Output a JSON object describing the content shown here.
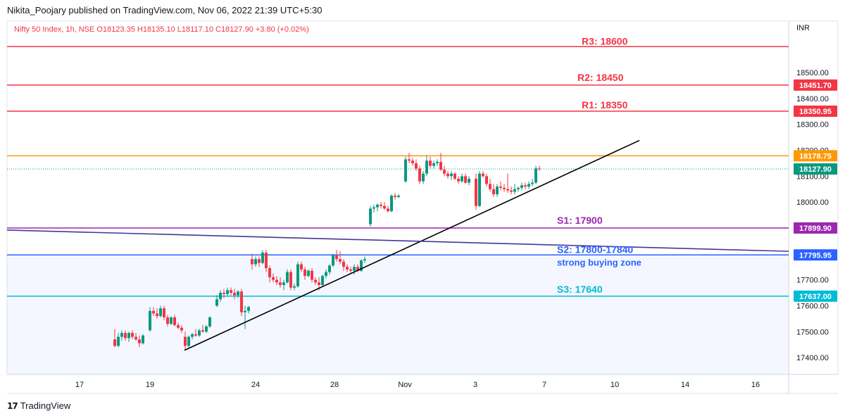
{
  "header": {
    "publish_text": "Nikita_Poojary published on TradingView.com, Nov 06, 2022 21:39 UTC+5:30"
  },
  "footer": {
    "logo_text": "TradingView",
    "logo_mark": "17"
  },
  "chart_data": {
    "type": "candlestick",
    "symbol_line": "Nifty 50 Index, 1h, NSE  O18123.35  H18135.10  L18117.10  C18127.90  +3.80 (+0.02%)",
    "currency": "INR",
    "ylim": [
      17335,
      18685
    ],
    "y_ticks": [
      17400,
      17500,
      17600,
      17700,
      17800,
      17900,
      18000,
      18100,
      18200,
      18300,
      18400,
      18500
    ],
    "y_tick_labels": [
      "17400.00",
      "17500.00",
      "17600.00",
      "17700.00",
      "17800.00",
      "17900.00",
      "18000.00",
      "18100.00",
      "18200.00",
      "18300.00",
      "18400.00",
      "18500.00"
    ],
    "x_ticks": [
      {
        "label": "17",
        "pos": 113
      },
      {
        "label": "19",
        "pos": 213
      },
      {
        "label": "24",
        "pos": 363
      },
      {
        "label": "28",
        "pos": 475
      },
      {
        "label": "Nov",
        "pos": 575
      },
      {
        "label": "3",
        "pos": 675
      },
      {
        "label": "7",
        "pos": 773
      },
      {
        "label": "10",
        "pos": 873
      },
      {
        "label": "14",
        "pos": 973
      },
      {
        "label": "16",
        "pos": 1073
      }
    ],
    "levels": [
      {
        "name": "R3",
        "label": "R3: 18600",
        "value": 18600,
        "color": "#f23645",
        "badge": ""
      },
      {
        "name": "R2",
        "label": "R2: 18450",
        "value": 18451.7,
        "color": "#f23645",
        "badge": "18451.70"
      },
      {
        "name": "R1",
        "label": "R1: 18350",
        "value": 18350.95,
        "color": "#f23645",
        "badge": "18350.95"
      },
      {
        "name": "orange",
        "label": "",
        "value": 18178.75,
        "color": "#ff9800",
        "badge": "18178.75"
      },
      {
        "name": "S1",
        "label": "S1: 17900",
        "value": 17899.9,
        "color": "#9c27b0",
        "badge": "17899.90"
      },
      {
        "name": "S2",
        "label": "S2: 17800-17840",
        "value": 17795.95,
        "color": "#2962ff",
        "badge": "17795.95"
      },
      {
        "name": "S3",
        "label": "S3: 17640",
        "value": 17637.0,
        "color": "#00bcd4",
        "badge": "17637.00"
      }
    ],
    "last_price": {
      "value": 18127.9,
      "badge": "18127.90",
      "color": "#089981"
    },
    "zone_note": "strong buying zone",
    "zone_range": [
      17335,
      17796
    ],
    "trendlines": [
      {
        "name": "rising-trendline",
        "from": [
          262,
          17428
        ],
        "to": [
          908,
          18238
        ],
        "color": "#000000"
      },
      {
        "name": "falling-trendline",
        "from": [
          10,
          17892
        ],
        "to": [
          1120,
          17810
        ],
        "color": "#3f3a94"
      }
    ],
    "candles": [
      [
        163,
        17470,
        17510,
        17440,
        17445
      ],
      [
        168,
        17445,
        17495,
        17440,
        17480
      ],
      [
        173,
        17480,
        17505,
        17465,
        17495
      ],
      [
        178,
        17495,
        17505,
        17465,
        17475
      ],
      [
        183,
        17475,
        17500,
        17460,
        17495
      ],
      [
        188,
        17495,
        17505,
        17470,
        17480
      ],
      [
        193,
        17480,
        17495,
        17465,
        17470
      ],
      [
        198,
        17470,
        17485,
        17440,
        17455
      ],
      [
        203,
        17455,
        17490,
        17450,
        17485
      ],
      [
        213,
        17505,
        17595,
        17500,
        17580
      ],
      [
        218,
        17580,
        17595,
        17560,
        17570
      ],
      [
        223,
        17570,
        17590,
        17550,
        17560
      ],
      [
        228,
        17560,
        17600,
        17555,
        17590
      ],
      [
        233,
        17590,
        17600,
        17545,
        17555
      ],
      [
        238,
        17555,
        17565,
        17520,
        17530
      ],
      [
        243,
        17530,
        17560,
        17525,
        17555
      ],
      [
        248,
        17555,
        17565,
        17520,
        17525
      ],
      [
        253,
        17525,
        17535,
        17510,
        17515
      ],
      [
        258,
        17515,
        17525,
        17495,
        17505
      ],
      [
        263,
        17480,
        17500,
        17430,
        17445
      ],
      [
        268,
        17445,
        17485,
        17440,
        17480
      ],
      [
        273,
        17480,
        17495,
        17470,
        17490
      ],
      [
        278,
        17490,
        17510,
        17480,
        17485
      ],
      [
        283,
        17485,
        17510,
        17480,
        17505
      ],
      [
        288,
        17505,
        17525,
        17495,
        17500
      ],
      [
        293,
        17500,
        17525,
        17495,
        17520
      ],
      [
        298,
        17520,
        17560,
        17515,
        17555
      ],
      [
        308,
        17600,
        17640,
        17595,
        17625
      ],
      [
        313,
        17625,
        17660,
        17615,
        17650
      ],
      [
        318,
        17650,
        17665,
        17630,
        17645
      ],
      [
        323,
        17645,
        17670,
        17635,
        17660
      ],
      [
        328,
        17660,
        17670,
        17640,
        17650
      ],
      [
        333,
        17650,
        17665,
        17625,
        17640
      ],
      [
        338,
        17640,
        17660,
        17630,
        17655
      ],
      [
        343,
        17655,
        17665,
        17560,
        17575
      ],
      [
        348,
        17575,
        17600,
        17510,
        17580
      ],
      [
        353,
        17580,
        17600,
        17570,
        17595
      ],
      [
        358,
        17780,
        17800,
        17740,
        17760
      ],
      [
        363,
        17760,
        17790,
        17750,
        17780
      ],
      [
        368,
        17780,
        17790,
        17750,
        17765
      ],
      [
        373,
        17765,
        17815,
        17760,
        17805
      ],
      [
        378,
        17805,
        17815,
        17730,
        17745
      ],
      [
        383,
        17745,
        17755,
        17690,
        17710
      ],
      [
        388,
        17710,
        17725,
        17690,
        17700
      ],
      [
        393,
        17700,
        17715,
        17680,
        17690
      ],
      [
        398,
        17690,
        17710,
        17670,
        17680
      ],
      [
        403,
        17680,
        17700,
        17660,
        17690
      ],
      [
        408,
        17690,
        17740,
        17685,
        17730
      ],
      [
        413,
        17730,
        17740,
        17660,
        17670
      ],
      [
        418,
        17670,
        17685,
        17660,
        17675
      ],
      [
        423,
        17675,
        17770,
        17670,
        17760
      ],
      [
        428,
        17760,
        17770,
        17730,
        17740
      ],
      [
        433,
        17740,
        17750,
        17700,
        17715
      ],
      [
        438,
        17715,
        17740,
        17710,
        17735
      ],
      [
        443,
        17735,
        17745,
        17690,
        17700
      ],
      [
        448,
        17700,
        17710,
        17680,
        17690
      ],
      [
        453,
        17690,
        17710,
        17660,
        17680
      ],
      [
        458,
        17680,
        17720,
        17675,
        17715
      ],
      [
        463,
        17715,
        17740,
        17705,
        17730
      ],
      [
        468,
        17730,
        17760,
        17720,
        17755
      ],
      [
        473,
        17755,
        17800,
        17750,
        17795
      ],
      [
        478,
        17795,
        17815,
        17770,
        17780
      ],
      [
        483,
        17780,
        17810,
        17760,
        17770
      ],
      [
        488,
        17770,
        17780,
        17735,
        17750
      ],
      [
        493,
        17750,
        17760,
        17730,
        17740
      ],
      [
        498,
        17740,
        17750,
        17725,
        17735
      ],
      [
        503,
        17735,
        17760,
        17720,
        17750
      ],
      [
        508,
        17750,
        17760,
        17730,
        17735
      ],
      [
        513,
        17735,
        17780,
        17730,
        17775
      ],
      [
        518,
        17775,
        17790,
        17765,
        17780
      ],
      [
        526,
        17915,
        17985,
        17905,
        17975
      ],
      [
        531,
        17975,
        17990,
        17960,
        17980
      ],
      [
        536,
        17980,
        17995,
        17965,
        17990
      ],
      [
        541,
        17990,
        18000,
        17975,
        17985
      ],
      [
        546,
        17985,
        18000,
        17970,
        17975
      ],
      [
        551,
        17975,
        17985,
        17960,
        17965
      ],
      [
        556,
        17965,
        18030,
        17960,
        18025
      ],
      [
        561,
        18025,
        18035,
        18010,
        18020
      ],
      [
        566,
        18020,
        18030,
        18015,
        18025
      ],
      [
        576,
        18080,
        18175,
        18075,
        18165
      ],
      [
        581,
        18165,
        18190,
        18150,
        18160
      ],
      [
        586,
        18160,
        18170,
        18140,
        18150
      ],
      [
        591,
        18150,
        18165,
        18120,
        18130
      ],
      [
        596,
        18130,
        18140,
        18070,
        18080
      ],
      [
        601,
        18080,
        18120,
        18070,
        18110
      ],
      [
        606,
        18110,
        18180,
        18100,
        18160
      ],
      [
        611,
        18160,
        18175,
        18130,
        18140
      ],
      [
        616,
        18140,
        18160,
        18130,
        18150
      ],
      [
        621,
        18150,
        18165,
        18140,
        18155
      ],
      [
        626,
        18155,
        18190,
        18120,
        18125
      ],
      [
        631,
        18125,
        18140,
        18100,
        18110
      ],
      [
        636,
        18110,
        18120,
        18090,
        18100
      ],
      [
        641,
        18100,
        18120,
        18085,
        18110
      ],
      [
        646,
        18110,
        18115,
        18085,
        18090
      ],
      [
        651,
        18090,
        18100,
        18070,
        18080
      ],
      [
        656,
        18080,
        18110,
        18075,
        18100
      ],
      [
        661,
        18100,
        18110,
        18070,
        18075
      ],
      [
        666,
        18075,
        18100,
        18065,
        18090
      ],
      [
        676,
        18090,
        18110,
        17970,
        17985
      ],
      [
        681,
        17985,
        18120,
        17980,
        18110
      ],
      [
        686,
        18110,
        18120,
        18095,
        18100
      ],
      [
        691,
        18100,
        18110,
        18060,
        18070
      ],
      [
        696,
        18070,
        18090,
        18040,
        18050
      ],
      [
        701,
        18050,
        18070,
        18020,
        18030
      ],
      [
        706,
        18030,
        18070,
        18020,
        18060
      ],
      [
        711,
        18060,
        18080,
        18045,
        18055
      ],
      [
        716,
        18055,
        18070,
        18040,
        18050
      ],
      [
        721,
        18050,
        18110,
        18035,
        18045
      ],
      [
        726,
        18045,
        18060,
        18030,
        18040
      ],
      [
        731,
        18040,
        18070,
        18030,
        18050
      ],
      [
        736,
        18050,
        18060,
        18040,
        18055
      ],
      [
        741,
        18055,
        18075,
        18045,
        18065
      ],
      [
        746,
        18065,
        18075,
        18050,
        18060
      ],
      [
        751,
        18060,
        18080,
        18050,
        18070
      ],
      [
        756,
        18070,
        18090,
        18060,
        18075
      ],
      [
        761,
        18075,
        18140,
        18070,
        18130
      ],
      [
        766,
        18130,
        18140,
        18120,
        18128
      ]
    ]
  }
}
